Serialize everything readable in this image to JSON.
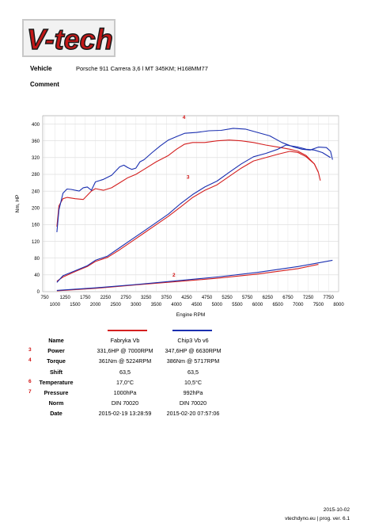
{
  "logo": {
    "text": "V-tech"
  },
  "header": {
    "vehicle_label": "Vehicle",
    "vehicle_value": "Porsche 911 Carrera 3,6 l MT 345KM; H168MM77",
    "comment_label": "Comment"
  },
  "colors": {
    "red": "#d42020",
    "blue": "#1a2fb0"
  },
  "chart_data": {
    "type": "line",
    "xlabel": "Engine RPM",
    "ylabel": "Nm, HP",
    "xlim": [
      700,
      8000
    ],
    "ylim": [
      0,
      420
    ],
    "x_ticks": [
      "750",
      "1250",
      "1750",
      "2250",
      "2750",
      "3250",
      "3750",
      "4250",
      "4750",
      "5250",
      "5750",
      "6250",
      "6750",
      "7250",
      "7750",
      "1000",
      "1500",
      "2000",
      "2500",
      "3000",
      "3500",
      "4000",
      "4500",
      "5000",
      "5500",
      "6000",
      "6500",
      "7000",
      "7500",
      "8000"
    ],
    "y_ticks": [
      "0",
      "40",
      "80",
      "120",
      "160",
      "200",
      "240",
      "280",
      "320",
      "360",
      "400"
    ],
    "annotations": [
      "4",
      "3",
      "2"
    ],
    "series": [
      {
        "name": "Fabryka Vb",
        "color": "#d42020",
        "kind": "torque",
        "x": [
          1050,
          1100,
          1200,
          1300,
          1500,
          1700,
          1800,
          1900,
          2000,
          2200,
          2400,
          2600,
          2800,
          3000,
          3200,
          3500,
          3800,
          4000,
          4200,
          4400,
          4700,
          5000,
          5300,
          5600,
          5900,
          6200,
          6500,
          6800,
          7000,
          7200,
          7400,
          7500,
          7550
        ],
        "y": [
          155,
          205,
          222,
          225,
          222,
          220,
          230,
          240,
          246,
          242,
          248,
          260,
          272,
          280,
          292,
          310,
          325,
          340,
          352,
          356,
          356,
          360,
          362,
          360,
          356,
          350,
          345,
          340,
          335,
          325,
          305,
          285,
          265
        ]
      },
      {
        "name": "Chip3 Vb v6",
        "color": "#1a2fb0",
        "kind": "torque",
        "x": [
          1050,
          1100,
          1200,
          1300,
          1400,
          1600,
          1700,
          1800,
          1900,
          2000,
          2200,
          2400,
          2600,
          2700,
          2800,
          2900,
          3000,
          3100,
          3200,
          3400,
          3600,
          3800,
          4000,
          4200,
          4500,
          4800,
          5100,
          5400,
          5700,
          6000,
          6300,
          6600,
          6900,
          7100,
          7300,
          7500,
          7700,
          7800,
          7850
        ],
        "y": [
          142,
          195,
          235,
          245,
          244,
          240,
          248,
          250,
          242,
          262,
          268,
          278,
          298,
          302,
          296,
          292,
          295,
          310,
          315,
          332,
          348,
          362,
          370,
          378,
          380,
          384,
          385,
          390,
          388,
          380,
          372,
          356,
          345,
          340,
          338,
          345,
          344,
          335,
          315
        ]
      },
      {
        "name": "Fabryka Vb",
        "color": "#d42020",
        "kind": "power",
        "x": [
          1050,
          1200,
          1500,
          1800,
          2000,
          2300,
          2600,
          2900,
          3200,
          3500,
          3800,
          4100,
          4400,
          4700,
          5000,
          5300,
          5600,
          5900,
          6200,
          6500,
          6800,
          7000,
          7200,
          7400,
          7500
        ],
        "y": [
          25,
          35,
          48,
          60,
          72,
          82,
          100,
          120,
          140,
          160,
          180,
          202,
          225,
          242,
          255,
          275,
          295,
          312,
          320,
          328,
          335,
          332,
          322,
          305,
          285
        ]
      },
      {
        "name": "Chip3 Vb v6",
        "color": "#1a2fb0",
        "kind": "power",
        "x": [
          1050,
          1200,
          1500,
          1800,
          2000,
          2300,
          2600,
          2900,
          3200,
          3500,
          3800,
          4100,
          4400,
          4700,
          5000,
          5300,
          5600,
          5900,
          6200,
          6500,
          6700,
          7000,
          7200,
          7400,
          7600,
          7800
        ],
        "y": [
          22,
          38,
          50,
          62,
          75,
          85,
          105,
          125,
          145,
          165,
          185,
          210,
          232,
          250,
          264,
          285,
          305,
          322,
          330,
          340,
          350,
          345,
          340,
          338,
          332,
          320
        ]
      },
      {
        "name": "Fabryka Vb",
        "color": "#d42020",
        "kind": "loss",
        "x": [
          1050,
          2000,
          3000,
          4000,
          5000,
          6000,
          7000,
          7500
        ],
        "y": [
          2,
          8,
          16,
          24,
          32,
          42,
          55,
          65
        ]
      },
      {
        "name": "Chip3 Vb v6",
        "color": "#1a2fb0",
        "kind": "loss",
        "x": [
          1050,
          2000,
          3000,
          4000,
          5000,
          6000,
          7000,
          7850
        ],
        "y": [
          3,
          9,
          17,
          26,
          35,
          46,
          60,
          75
        ]
      }
    ]
  },
  "legend": {
    "col1": "Fabryka Vb",
    "col2": "Chip3 Vb v6"
  },
  "table": {
    "rows": [
      {
        "label": "Name",
        "marker": "",
        "c1": "Fabryka Vb",
        "c2": "Chip3 Vb v6"
      },
      {
        "label": "Power",
        "marker": "3",
        "c1": "331,6HP @  7000RPM",
        "c2": "347,6HP @  6630RPM"
      },
      {
        "label": "Torque",
        "marker": "4",
        "c1": "361Nm @ 5224RPM",
        "c2": "386Nm @ 5717RPM"
      },
      {
        "label": "Shift",
        "marker": "",
        "c1": "63,5",
        "c2": "63,5"
      },
      {
        "label": "Temperature",
        "marker": "6",
        "c1": "17,0°C",
        "c2": "10,5°C"
      },
      {
        "label": "Pressure",
        "marker": "7",
        "c1": "1000hPa",
        "c2": "992hPa"
      },
      {
        "label": "Norm",
        "marker": "",
        "c1": "DIN 70020",
        "c2": "DIN 70020"
      },
      {
        "label": "Date",
        "marker": "",
        "c1": "2015-02-19 13:28:59",
        "c2": "2015-02-20 07:57:06"
      }
    ]
  },
  "footer": {
    "date": "2015-10-02",
    "info": "vtechdyno.eu | prog. ver. 6.1"
  }
}
